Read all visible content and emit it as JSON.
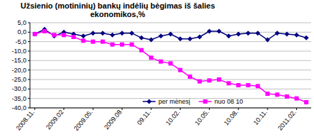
{
  "chart_data": {
    "type": "line",
    "title": "Užsienio (motininių) bankų indėlių bėgimas iš šalies ekonomikos,%",
    "categories": [
      "2008.11.",
      null,
      null,
      "2009.02",
      null,
      null,
      "2009.05.",
      null,
      null,
      "2009.08",
      null,
      null,
      "09.11.",
      null,
      null,
      "10.02.",
      null,
      null,
      "10.05.",
      null,
      null,
      "10.08.",
      null,
      null,
      "10.11.",
      null,
      null,
      "2011.02.",
      null
    ],
    "series": [
      {
        "name": "per mėnesį",
        "color": "#000080",
        "marker": "diamond",
        "values": [
          -1,
          1.5,
          -2,
          0,
          -1,
          -2,
          -0.5,
          -0.5,
          -1.5,
          -0.5,
          -0.5,
          -3,
          -4,
          -2,
          -1,
          -3.5,
          -3.5,
          -2.5,
          0.5,
          0.5,
          -2,
          -1,
          -0.5,
          -0.5,
          -4,
          -0.5,
          -1,
          -1.5,
          -3
        ]
      },
      {
        "name": "nuo 08 10",
        "color": "#ff00ff",
        "marker": "square",
        "values": [
          -1,
          0.5,
          -1.5,
          -1.5,
          -2.5,
          -4.5,
          -5,
          -5,
          -6.5,
          -6.5,
          -6.5,
          -9.5,
          -13.5,
          -15.5,
          -16.5,
          -20,
          -23.5,
          -26,
          -25.5,
          -25,
          -27,
          -28,
          -28,
          -28.5,
          -32.5,
          -33,
          -34,
          -35,
          -37
        ]
      }
    ],
    "ylim": [
      5,
      -40
    ],
    "yticks": [
      {
        "value": 5,
        "label": "5,0"
      },
      {
        "value": 0,
        "label": "0,0"
      },
      {
        "value": -5,
        "label": "-5,0"
      },
      {
        "value": -10,
        "label": "-10,0"
      },
      {
        "value": -15,
        "label": "-15,0"
      },
      {
        "value": -20,
        "label": "-20,0"
      },
      {
        "value": -25,
        "label": "-25,0"
      },
      {
        "value": -30,
        "label": "-30,0"
      },
      {
        "value": -35,
        "label": "-35,0"
      },
      {
        "value": -40,
        "label": "-40,0"
      }
    ],
    "grid": true,
    "legend": "bottom"
  }
}
